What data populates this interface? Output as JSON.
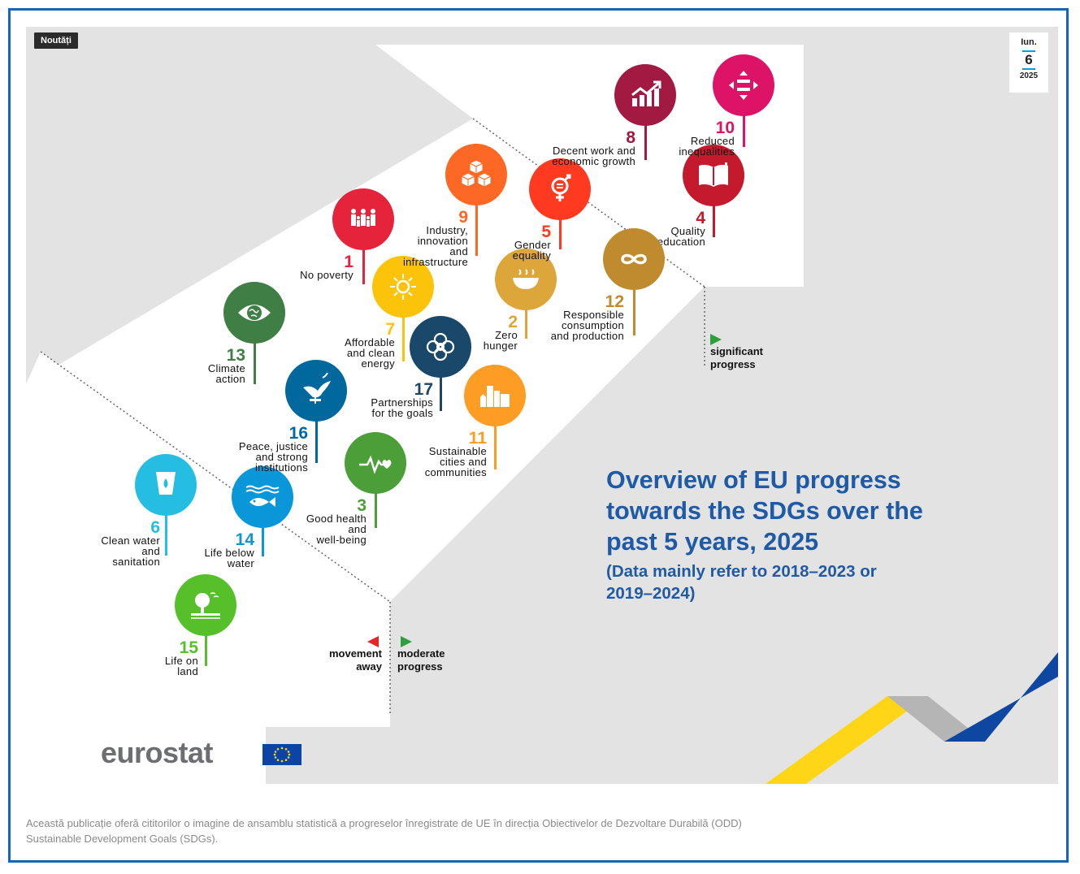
{
  "badge": "Noutăți",
  "date": {
    "month": "Iun.",
    "day": "6",
    "year": "2025"
  },
  "title": "Overview of EU progress\ntowards the SDGs over the\npast 5 years, 2025",
  "subtitle": "(Data mainly refer to 2018–2023 or\n2019–2024)",
  "legend": {
    "significant": "significant\nprogress",
    "moderate": "moderate\nprogress",
    "away": "movement\naway"
  },
  "logo": "eurostat",
  "caption_line1": "Această publicație oferă cititorilor o imagine de ansamblu statistică a progreselor înregistrate de UE în direcția Obiectivelor de Dezvoltare Durabilă (ODD)",
  "caption_line2": "Sustainable Development Goals (SDGs).",
  "colors": {
    "accent": "#1e5aa6",
    "frame": "#1565c0",
    "green": "#2ea03a",
    "red": "#e52528",
    "goal1": "#e5243b",
    "goal2": "#dda63a",
    "goal3": "#4c9f38",
    "goal4": "#c5192d",
    "goal5": "#ff3a21",
    "goal6": "#26bde2",
    "goal7": "#fcc30b",
    "goal8": "#a21942",
    "goal9": "#fd6925",
    "goal10": "#dd1367",
    "goal11": "#fd9d24",
    "goal12": "#bf8b2e",
    "goal13": "#3f7e44",
    "goal14": "#0a97d9",
    "goal15": "#56c02b",
    "goal16": "#00689d",
    "goal17": "#19486a"
  },
  "goals": [
    {
      "number": "1",
      "label": "No poverty",
      "icon": "family-icon"
    },
    {
      "number": "2",
      "label": "Zero\nhunger",
      "icon": "bowl-icon"
    },
    {
      "number": "3",
      "label": "Good health\nand\nwell-being",
      "icon": "heartbeat-icon"
    },
    {
      "number": "4",
      "label": "Quality\neducation",
      "icon": "book-icon"
    },
    {
      "number": "5",
      "label": "Gender\nequality",
      "icon": "gender-icon"
    },
    {
      "number": "6",
      "label": "Clean water\nand\nsanitation",
      "icon": "water-icon"
    },
    {
      "number": "7",
      "label": "Affordable\nand clean\nenergy",
      "icon": "sun-icon"
    },
    {
      "number": "8",
      "label": "Decent work and\neconomic growth",
      "icon": "growth-chart-icon"
    },
    {
      "number": "9",
      "label": "Industry,\ninnovation\nand\ninfrastructure",
      "icon": "cubes-icon"
    },
    {
      "number": "10",
      "label": "Reduced\ninequalities",
      "icon": "equals-icon"
    },
    {
      "number": "11",
      "label": "Sustainable\ncities and\ncommunities",
      "icon": "city-icon"
    },
    {
      "number": "12",
      "label": "Responsible\nconsumption\nand production",
      "icon": "infinity-icon"
    },
    {
      "number": "13",
      "label": "Climate\naction",
      "icon": "eye-globe-icon"
    },
    {
      "number": "14",
      "label": "Life below\nwater",
      "icon": "fish-icon"
    },
    {
      "number": "15",
      "label": "Life on\nland",
      "icon": "tree-icon"
    },
    {
      "number": "16",
      "label": "Peace, justice\nand strong\ninstitutions",
      "icon": "dove-icon"
    },
    {
      "number": "17",
      "label": "Partnerships\nfor the goals",
      "icon": "rings-icon"
    }
  ]
}
